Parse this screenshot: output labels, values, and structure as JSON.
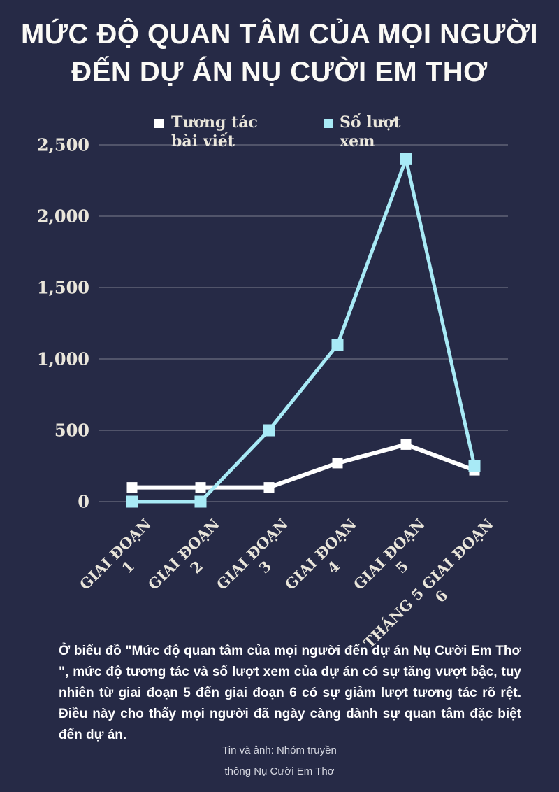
{
  "page": {
    "background": "#262a46",
    "title_line1": "MỨC ĐỘ QUAN TÂM CỦA MỌI NGƯỜI",
    "title_line2": "ĐẾN DỰ ÁN NỤ CƯỜI EM THƠ"
  },
  "chart_data": {
    "type": "line",
    "title": "Mức độ quan tâm của mọi người đến dự án Nụ Cười Em Thơ",
    "categories": [
      "GIAI ĐOẠN 1",
      "GIAI ĐOẠN 2",
      "GIAI ĐOẠN 3",
      "GIAI ĐOẠN 4",
      "GIAI ĐOẠN 5",
      "THÁNG 5 GIAI ĐOẠN 6"
    ],
    "category_lines": [
      [
        "GIAI ĐOẠN",
        "1"
      ],
      [
        "GIAI ĐOẠN",
        "2"
      ],
      [
        "GIAI ĐOẠN",
        "3"
      ],
      [
        "GIAI ĐOẠN",
        "4"
      ],
      [
        "GIAI ĐOẠN",
        "5"
      ],
      [
        "THÁNG 5 GIAI ĐOẠN",
        "6"
      ]
    ],
    "series": [
      {
        "name": "Tương tác bài viết",
        "color": "#ffffff",
        "values": [
          100,
          100,
          100,
          270,
          400,
          220
        ]
      },
      {
        "name": "Số lượt xem",
        "color": "#a8eaf6",
        "values": [
          0,
          0,
          500,
          1100,
          2400,
          250
        ]
      }
    ],
    "ylim": [
      0,
      2500
    ],
    "yticks": [
      0,
      500,
      1000,
      1500,
      2000,
      2500
    ],
    "ytick_labels": [
      "0",
      "500",
      "1,000",
      "1,500",
      "2,000",
      "2,500"
    ],
    "grid": true,
    "gridline_color": "rgba(255,255,255,0.32)",
    "legend_position": "top",
    "xlabel": "",
    "ylabel": ""
  },
  "caption": {
    "text": "Ở biểu đồ \"Mức độ quan tâm của mọi người đến dự án Nụ Cười Em Thơ \", mức độ tương tác và số lượt xem của dự án có sự tăng vượt bậc, tuy nhiên từ giai đoạn 5 đến giai đoạn 6 có sự giảm lượt tương tác rõ rệt. Điều này cho thấy mọi người đã ngày càng dành sự quan tâm đặc biệt đến dự án."
  },
  "credit": {
    "line1": "Tin và ảnh: Nhóm truyền",
    "line2": "thông Nụ Cười Em Thơ"
  }
}
